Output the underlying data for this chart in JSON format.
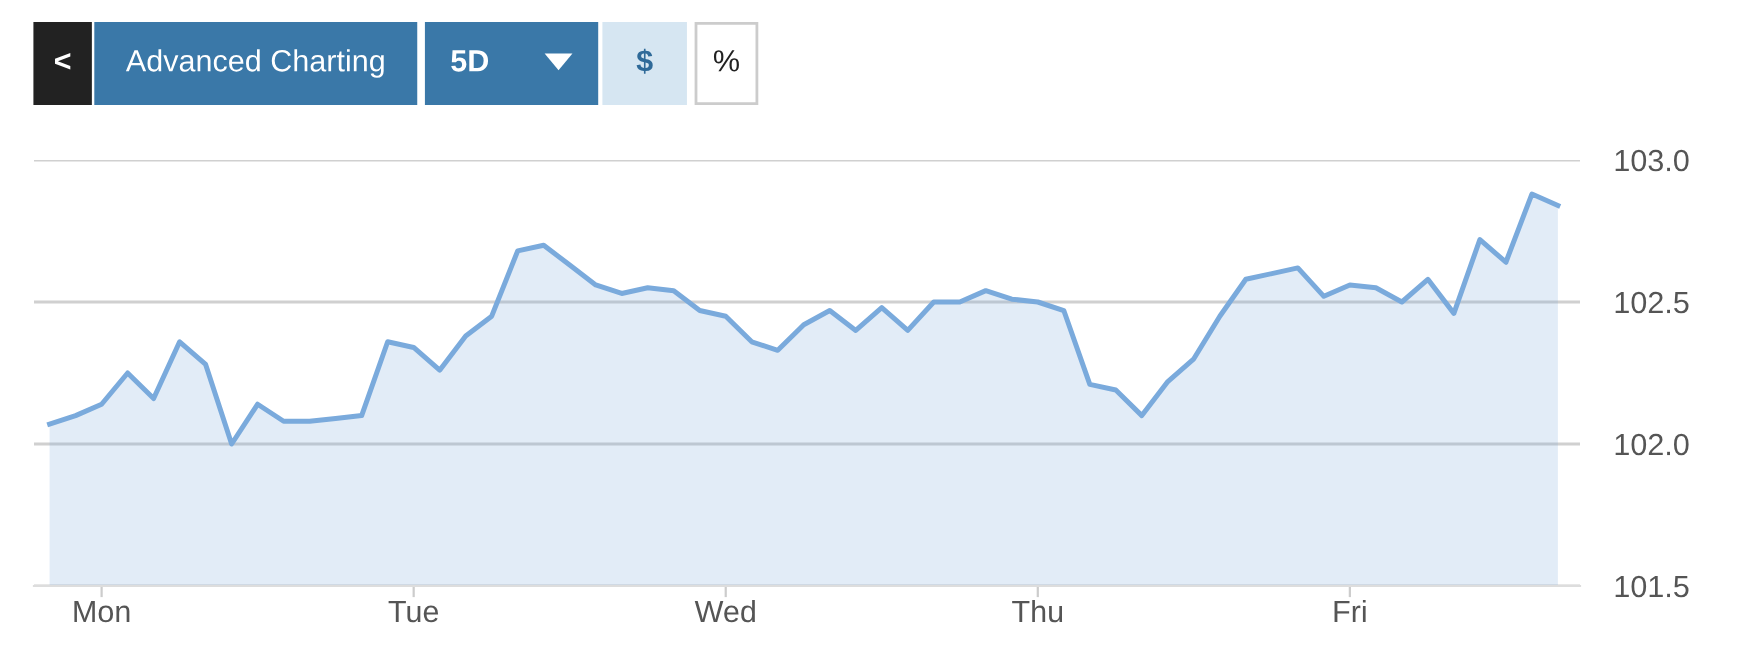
{
  "chart_data": {
    "type": "area",
    "annotations": [
      "<",
      "Advanced Charting",
      "5D",
      "$",
      "%"
    ],
    "categories": [
      null,
      null,
      "Mon",
      null,
      null,
      null,
      null,
      null,
      null,
      null,
      null,
      null,
      null,
      null,
      "Tue",
      null,
      null,
      null,
      null,
      null,
      null,
      null,
      null,
      null,
      null,
      null,
      "Wed",
      null,
      null,
      null,
      null,
      null,
      null,
      null,
      null,
      null,
      null,
      null,
      "Thu",
      null,
      null,
      null,
      null,
      null,
      null,
      null,
      null,
      null,
      null,
      null,
      "Fri",
      null,
      null,
      null,
      null,
      null,
      null,
      null,
      null
    ],
    "series": [
      {
        "color": "#7aaadc",
        "values": [
          102.07,
          102.1,
          102.14,
          102.25,
          102.16,
          102.36,
          102.28,
          102.0,
          102.14,
          102.08,
          102.08,
          102.09,
          102.1,
          102.36,
          102.34,
          102.26,
          102.38,
          102.45,
          102.68,
          102.7,
          102.63,
          102.56,
          102.53,
          102.55,
          102.54,
          102.47,
          102.45,
          102.36,
          102.33,
          102.42,
          102.47,
          102.4,
          102.48,
          102.4,
          102.5,
          102.5,
          102.54,
          102.51,
          102.5,
          102.47,
          102.21,
          102.19,
          102.1,
          102.22,
          102.3,
          102.45,
          102.58,
          102.6,
          102.62,
          102.52,
          102.56,
          102.55,
          102.5,
          102.58,
          102.46,
          102.72,
          102.64,
          102.88,
          102.84
        ]
      }
    ],
    "ylim": [
      101.5,
      103.0
    ],
    "yticks": [
      {
        "value": 101.5,
        "label": "101.5"
      },
      {
        "value": 102,
        "label": "102.0"
      },
      {
        "value": 102.5,
        "label": "102.5"
      },
      {
        "value": 103,
        "label": "103.0"
      }
    ],
    "grid": "y"
  }
}
